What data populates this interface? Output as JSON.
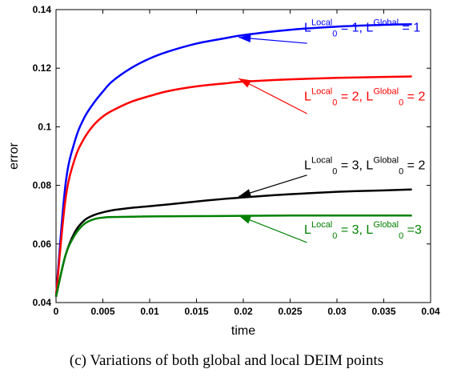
{
  "chart_data": {
    "type": "line",
    "xlabel": "time",
    "ylabel": "error",
    "xlim": [
      0,
      0.04
    ],
    "ylim": [
      0.04,
      0.14
    ],
    "xticks": [
      "0",
      "0.005",
      "0.01",
      "0.015",
      "0.02",
      "0.025",
      "0.03",
      "0.035",
      "0.04"
    ],
    "yticks": [
      "0.04",
      "0.06",
      "0.08",
      "0.1",
      "0.12",
      "0.14"
    ],
    "grid": false,
    "series": [
      {
        "color": "#0000ff",
        "label": {
          "l1": "Local",
          "e1": " = 1, ",
          "s2": "Global",
          "e2": " = 1",
          "sub2": false
        },
        "x": [
          0,
          0.001,
          0.002,
          0.003,
          0.004,
          0.005,
          0.006,
          0.008,
          0.01,
          0.012,
          0.015,
          0.018,
          0.02,
          0.025,
          0.03,
          0.035,
          0.038
        ],
        "y": [
          0.042,
          0.08,
          0.095,
          0.103,
          0.108,
          0.112,
          0.1155,
          0.12,
          0.1233,
          0.1257,
          0.1284,
          0.1302,
          0.1313,
          0.1331,
          0.1342,
          0.1348,
          0.135
        ]
      },
      {
        "color": "#ff0000",
        "label": {
          "l1": "Local",
          "e1": " = 2, ",
          "s2": "Global",
          "e2": " = 2",
          "sub2": true
        },
        "x": [
          0,
          0.001,
          0.002,
          0.003,
          0.004,
          0.005,
          0.006,
          0.008,
          0.01,
          0.012,
          0.015,
          0.018,
          0.02,
          0.025,
          0.03,
          0.035,
          0.038
        ],
        "y": [
          0.042,
          0.075,
          0.089,
          0.096,
          0.1005,
          0.1035,
          0.1055,
          0.1085,
          0.1105,
          0.1122,
          0.1138,
          0.1148,
          0.1154,
          0.1162,
          0.1167,
          0.117,
          0.1172
        ]
      },
      {
        "color": "#000000",
        "label": {
          "l1": "Local",
          "e1": " = 3, ",
          "s2": "Global",
          "e2": " = 2",
          "sub2": true
        },
        "x": [
          0,
          0.001,
          0.002,
          0.003,
          0.004,
          0.005,
          0.006,
          0.008,
          0.01,
          0.012,
          0.015,
          0.018,
          0.02,
          0.025,
          0.03,
          0.035,
          0.038
        ],
        "y": [
          0.042,
          0.056,
          0.064,
          0.068,
          0.0698,
          0.0708,
          0.0715,
          0.0723,
          0.0729,
          0.0735,
          0.0745,
          0.0754,
          0.0759,
          0.077,
          0.0778,
          0.0783,
          0.0786
        ]
      },
      {
        "color": "#008000",
        "label": {
          "l1": "Local",
          "e1": " = 3, ",
          "s2": "Global",
          "e2": " =3",
          "sub2": true
        },
        "x": [
          0,
          0.001,
          0.002,
          0.003,
          0.004,
          0.005,
          0.006,
          0.008,
          0.01,
          0.015,
          0.02,
          0.025,
          0.03,
          0.035,
          0.038
        ],
        "y": [
          0.042,
          0.056,
          0.063,
          0.0668,
          0.0684,
          0.069,
          0.0692,
          0.0693,
          0.0694,
          0.0695,
          0.0696,
          0.0697,
          0.0697,
          0.0697,
          0.0697
        ]
      }
    ],
    "annotations": [
      {
        "series": 0,
        "tx": 0.0265,
        "ty": 0.1325,
        "hx": 0.0195,
        "hy": 0.1305,
        "lx": 0.0268,
        "ly": 0.1285
      },
      {
        "series": 1,
        "tx": 0.0265,
        "ty": 0.109,
        "hx": 0.0195,
        "hy": 0.1165,
        "lx": 0.0268,
        "ly": 0.1045
      },
      {
        "series": 2,
        "tx": 0.0265,
        "ty": 0.0855,
        "hx": 0.0195,
        "hy": 0.0762,
        "lx": 0.0268,
        "ly": 0.0835
      },
      {
        "series": 3,
        "tx": 0.0265,
        "ty": 0.0635,
        "hx": 0.0195,
        "hy": 0.0697,
        "lx": 0.0268,
        "ly": 0.0605
      }
    ]
  },
  "caption": "(c) Variations of both global and local DEIM points"
}
